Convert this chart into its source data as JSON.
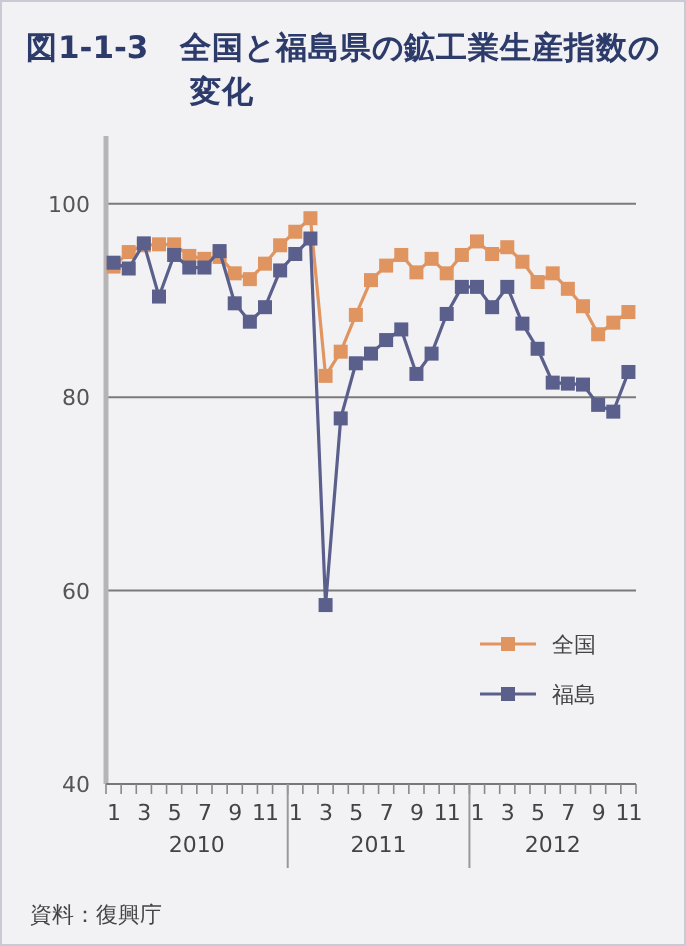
{
  "chart_data": {
    "type": "line",
    "title": "図1-1-3　全国と福島県の鉱工業生産指数の変化",
    "categories": [
      "1",
      null,
      "3",
      null,
      "5",
      null,
      "7",
      null,
      "9",
      null,
      "11",
      null,
      "1",
      null,
      "3",
      null,
      "5",
      null,
      "7",
      null,
      "9",
      null,
      "11",
      null,
      "1",
      null,
      "3",
      null,
      "5",
      null,
      "7",
      null,
      "9",
      null,
      "11"
    ],
    "series": [
      {
        "name": "全国",
        "color": "#e0945f",
        "values": [
          93.5,
          95.0,
          95.7,
          95.8,
          95.8,
          94.6,
          94.3,
          94.5,
          92.8,
          92.2,
          93.8,
          95.7,
          97.1,
          98.5,
          82.2,
          84.7,
          88.5,
          92.1,
          93.6,
          94.7,
          92.9,
          94.3,
          92.8,
          94.7,
          96.1,
          94.8,
          95.5,
          94.0,
          91.9,
          92.8,
          91.2,
          89.4,
          86.5,
          87.7,
          88.8
        ]
      },
      {
        "name": "福島",
        "color": "#5a5f8c",
        "values": [
          93.9,
          93.3,
          95.9,
          90.4,
          94.7,
          93.4,
          93.4,
          95.1,
          89.7,
          87.8,
          89.3,
          93.1,
          94.8,
          96.4,
          58.5,
          77.8,
          83.5,
          84.5,
          85.9,
          87.0,
          82.4,
          84.5,
          88.6,
          91.4,
          91.4,
          89.3,
          91.4,
          87.6,
          85.0,
          81.5,
          81.4,
          81.3,
          79.2,
          78.5,
          82.6
        ]
      }
    ],
    "ylim": [
      40,
      107
    ],
    "yticks": [
      40,
      60,
      80,
      100
    ],
    "grid": "y",
    "legend": "bottom right",
    "marker": "square",
    "line_style": "solid",
    "annotations": [
      "2010",
      "2011",
      "2012",
      "資料：復興庁"
    ]
  }
}
